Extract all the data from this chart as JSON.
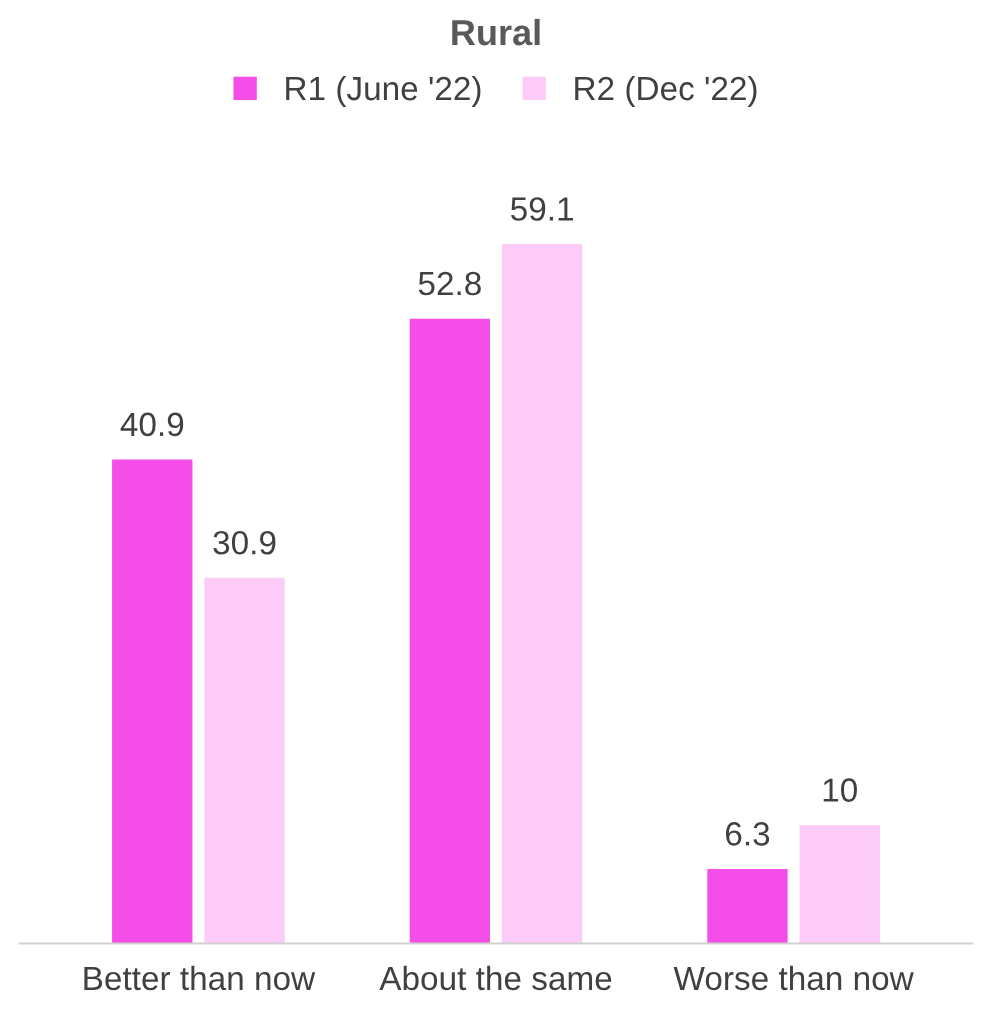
{
  "chart_data": {
    "type": "bar",
    "title": "Rural",
    "categories": [
      "Better than now",
      "About the same",
      "Worse than now"
    ],
    "series": [
      {
        "name": "R1 (June '22)",
        "color": "#f54ee8",
        "values": [
          40.9,
          52.8,
          6.3
        ]
      },
      {
        "name": "R2 (Dec '22)",
        "color": "#fccbf7",
        "values": [
          30.9,
          59.1,
          10
        ]
      }
    ],
    "data_labels": true,
    "legend": "top",
    "grid": false
  }
}
